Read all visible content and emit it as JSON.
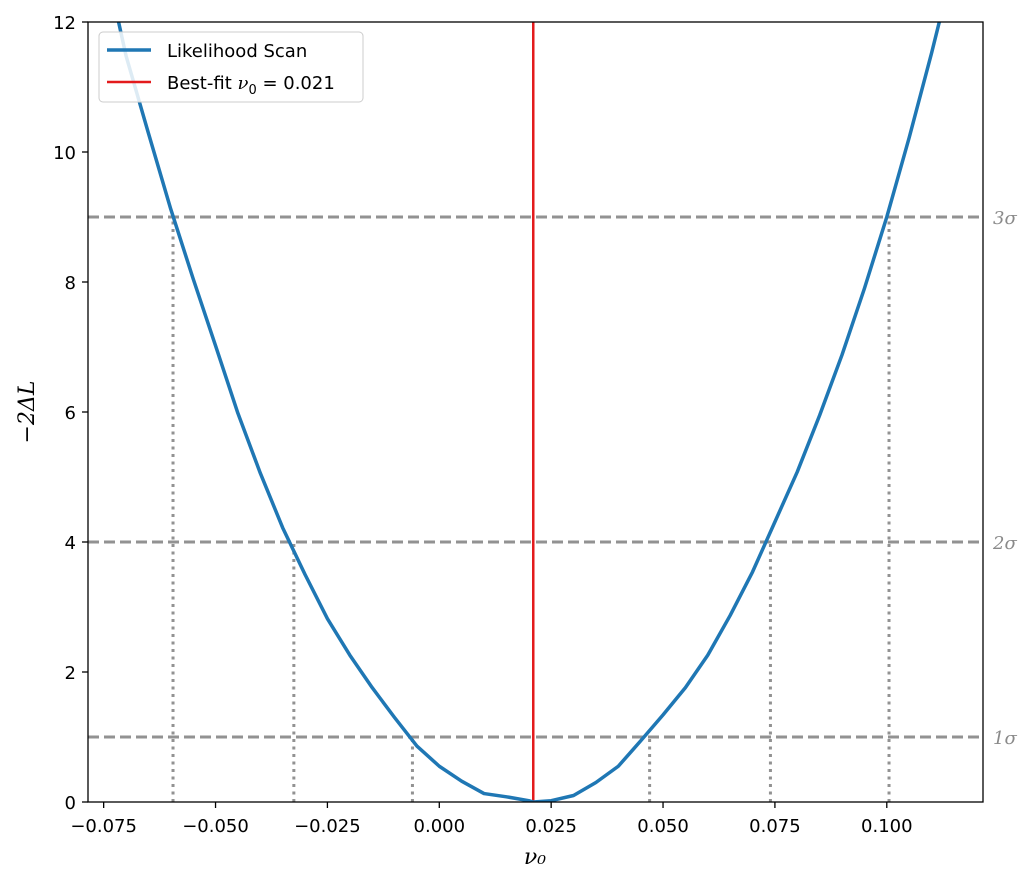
{
  "chart_data": {
    "type": "line",
    "xlabel": "ν₀",
    "ylabel": "−2ΔL",
    "xlim": [
      -0.0785,
      0.1215
    ],
    "ylim": [
      0,
      12
    ],
    "xticks": [
      -0.075,
      -0.05,
      -0.025,
      0.0,
      0.025,
      0.05,
      0.075,
      0.1
    ],
    "xtick_labels": [
      "−0.075",
      "−0.050",
      "−0.025",
      "0.000",
      "0.025",
      "0.050",
      "0.075",
      "0.100"
    ],
    "yticks": [
      0,
      2,
      4,
      6,
      8,
      10,
      12
    ],
    "ytick_labels": [
      "0",
      "2",
      "4",
      "6",
      "8",
      "10",
      "12"
    ],
    "grid": false,
    "legend_position": "top-left",
    "series": [
      {
        "name": "Likelihood Scan",
        "color": "#1f77b4",
        "x": [
          -0.0725,
          -0.07,
          -0.065,
          -0.06,
          -0.055,
          -0.05,
          -0.045,
          -0.04,
          -0.035,
          -0.03,
          -0.025,
          -0.02,
          -0.015,
          -0.01,
          -0.005,
          0.0,
          0.005,
          0.01,
          0.015,
          0.02,
          0.021,
          0.025,
          0.03,
          0.035,
          0.04,
          0.045,
          0.05,
          0.055,
          0.06,
          0.065,
          0.07,
          0.075,
          0.08,
          0.085,
          0.09,
          0.095,
          0.1,
          0.105,
          0.11,
          0.113
        ],
        "y": [
          12.26,
          11.48,
          10.29,
          9.12,
          8.05,
          7.02,
          5.98,
          5.06,
          4.22,
          3.5,
          2.82,
          2.26,
          1.76,
          1.3,
          0.86,
          0.55,
          0.32,
          0.13,
          0.08,
          0.02,
          0.0,
          0.02,
          0.1,
          0.3,
          0.55,
          0.94,
          1.34,
          1.76,
          2.26,
          2.87,
          3.54,
          4.31,
          5.08,
          5.95,
          6.88,
          7.9,
          9.0,
          10.22,
          11.52,
          12.35
        ]
      }
    ],
    "best_fit": {
      "label_prefix": "Best-fit ",
      "label_math": "ν",
      "label_sub": "0",
      "label_value": " = 0.021",
      "value": 0.021,
      "color": "#e31a1c"
    },
    "thresholds": [
      {
        "level": 1,
        "label": "1σ",
        "crossings": [
          -0.006,
          0.047
        ]
      },
      {
        "level": 4,
        "label": "2σ",
        "crossings": [
          -0.0325,
          0.074
        ]
      },
      {
        "level": 9,
        "label": "3σ",
        "crossings": [
          -0.0595,
          0.1005
        ]
      }
    ],
    "threshold_color": "#929292"
  }
}
